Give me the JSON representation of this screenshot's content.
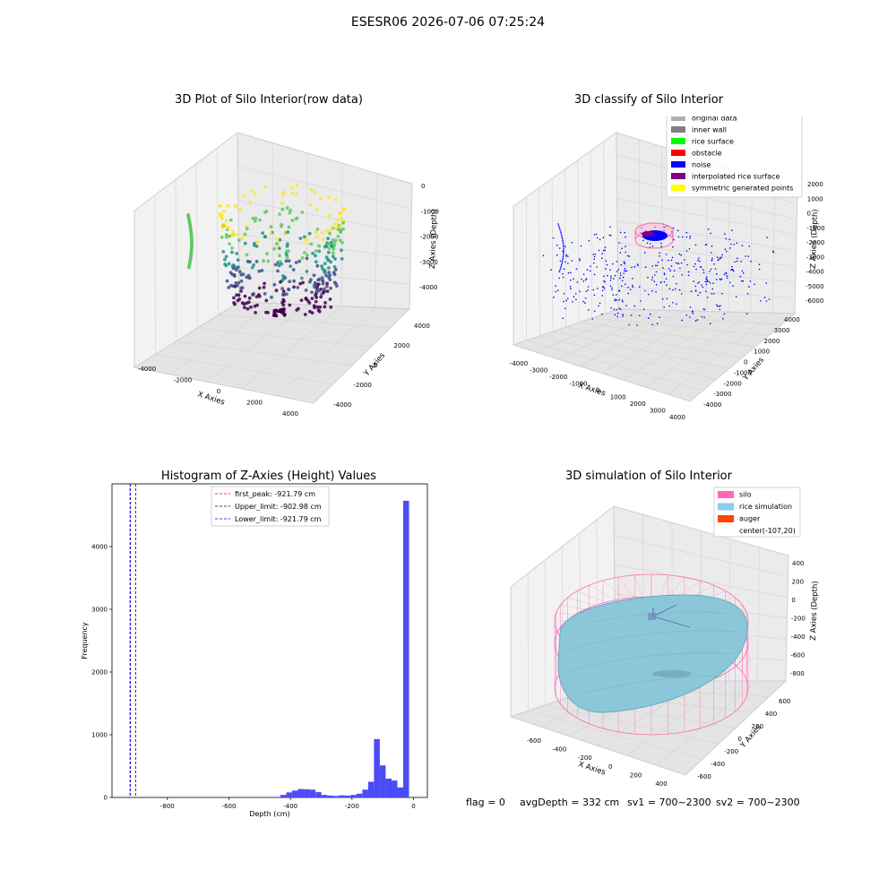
{
  "suptitle": "ESESR06 2026-07-06 07:25:24",
  "footer": {
    "flag": "flag = 0",
    "avg": "avgDepth = 332 cm",
    "sv1": "sv1 = 700~2300",
    "sv2": "sv2 = 700~2300"
  },
  "chart_data": [
    {
      "type": "scatter",
      "title": "3D Plot of Silo Interior(row data)",
      "xlabel": "X Axies",
      "ylabel": "Y Axies",
      "zlabel": "Z Axies (Depth)",
      "xticks": [
        "-4000",
        "-2000",
        "0",
        "2000",
        "4000"
      ],
      "yticks": [
        "-4000",
        "-2000",
        "0",
        "2000",
        "4000"
      ],
      "zticks": [
        "0",
        "-1000",
        "-2000",
        "-3000",
        "-4000"
      ],
      "xlim": [
        -4500,
        4500
      ],
      "ylim": [
        -4500,
        4500
      ],
      "zlim": [
        -4500,
        300
      ],
      "colormap": [
        "#440154",
        "#3b528b",
        "#21918c",
        "#5ec962",
        "#fde725"
      ]
    },
    {
      "type": "scatter",
      "title": "3D classify of Silo Interior",
      "xlabel": "X Axies",
      "ylabel": "Y Axies",
      "zlabel": "Z Axies (Depth)",
      "xticks": [
        "-4000",
        "-3000",
        "-2000",
        "-1000",
        "0",
        "1000",
        "2000",
        "3000",
        "4000"
      ],
      "yticks": [
        "4000",
        "3000",
        "2000",
        "1000",
        "0",
        "-1000",
        "-2000",
        "-3000",
        "-4000"
      ],
      "zticks": [
        "2000",
        "1000",
        "0",
        "-1000",
        "-2000",
        "-3000",
        "-4000",
        "-5000",
        "-6000"
      ],
      "legend": [
        {
          "label": "original data",
          "color": "#b0b0b0"
        },
        {
          "label": "inner wall",
          "color": "#808080"
        },
        {
          "label": "rice surface",
          "color": "#00ff00"
        },
        {
          "label": "obstacle",
          "color": "#ff0000"
        },
        {
          "label": "noise",
          "color": "#0000ff"
        },
        {
          "label": "interpolated rice surface",
          "color": "#800080"
        },
        {
          "label": "symmetric generated points",
          "color": "#ffff00"
        }
      ],
      "legend_position": "top-right"
    },
    {
      "type": "bar",
      "title": "Histogram of Z-Axies (Height) Values",
      "xlabel": "Depth (cm)",
      "ylabel": "Frequency",
      "xlim": [
        -980,
        45
      ],
      "ylim": [
        0,
        5000
      ],
      "xticks": [
        -800,
        -600,
        -400,
        -200,
        0
      ],
      "yticks": [
        0,
        1000,
        2000,
        3000,
        4000
      ],
      "bin_width": 19,
      "bar_color": "#4b4bf7",
      "bins": [
        {
          "x": -441,
          "count": 8
        },
        {
          "x": -423,
          "count": 40
        },
        {
          "x": -404,
          "count": 80
        },
        {
          "x": -385,
          "count": 110
        },
        {
          "x": -366,
          "count": 135
        },
        {
          "x": -347,
          "count": 130
        },
        {
          "x": -328,
          "count": 125
        },
        {
          "x": -309,
          "count": 85
        },
        {
          "x": -290,
          "count": 40
        },
        {
          "x": -271,
          "count": 30
        },
        {
          "x": -252,
          "count": 25
        },
        {
          "x": -233,
          "count": 35
        },
        {
          "x": -214,
          "count": 30
        },
        {
          "x": -195,
          "count": 40
        },
        {
          "x": -176,
          "count": 60
        },
        {
          "x": -157,
          "count": 125
        },
        {
          "x": -138,
          "count": 250
        },
        {
          "x": -119,
          "count": 930
        },
        {
          "x": -100,
          "count": 510
        },
        {
          "x": -81,
          "count": 300
        },
        {
          "x": -62,
          "count": 270
        },
        {
          "x": -43,
          "count": 160
        },
        {
          "x": -24,
          "count": 4730
        }
      ],
      "vlines": [
        {
          "label": "first_peak: -921.79 cm",
          "value": -921.79,
          "color": "#ff0000"
        },
        {
          "label": "Upper_limit: -902.98 cm",
          "value": -902.98,
          "color": "#00008b"
        },
        {
          "label": "Lower_limit: -921.79 cm",
          "value": -921.79,
          "color": "#0000ff"
        }
      ],
      "legend_position": "top-center"
    },
    {
      "type": "scatter",
      "title": "3D simulation of Silo Interior",
      "xlabel": "X Axies",
      "ylabel": "Y Axies",
      "zlabel": "Z Axies (Depth)",
      "xticks": [
        "-600",
        "-400",
        "-200",
        "0",
        "200",
        "400"
      ],
      "yticks": [
        "600",
        "400",
        "200",
        "0",
        "-200",
        "-400",
        "-600"
      ],
      "zticks": [
        "400",
        "200",
        "0",
        "-200",
        "-400",
        "-600",
        "-800"
      ],
      "legend": [
        {
          "label": "silo",
          "color": "#ff69b4"
        },
        {
          "label": "rice simulation",
          "color": "#87ceeb"
        },
        {
          "label": "auger",
          "color": "#ff4500"
        },
        {
          "label": "center(-107,20)",
          "color": ""
        }
      ],
      "legend_position": "top-right"
    }
  ]
}
